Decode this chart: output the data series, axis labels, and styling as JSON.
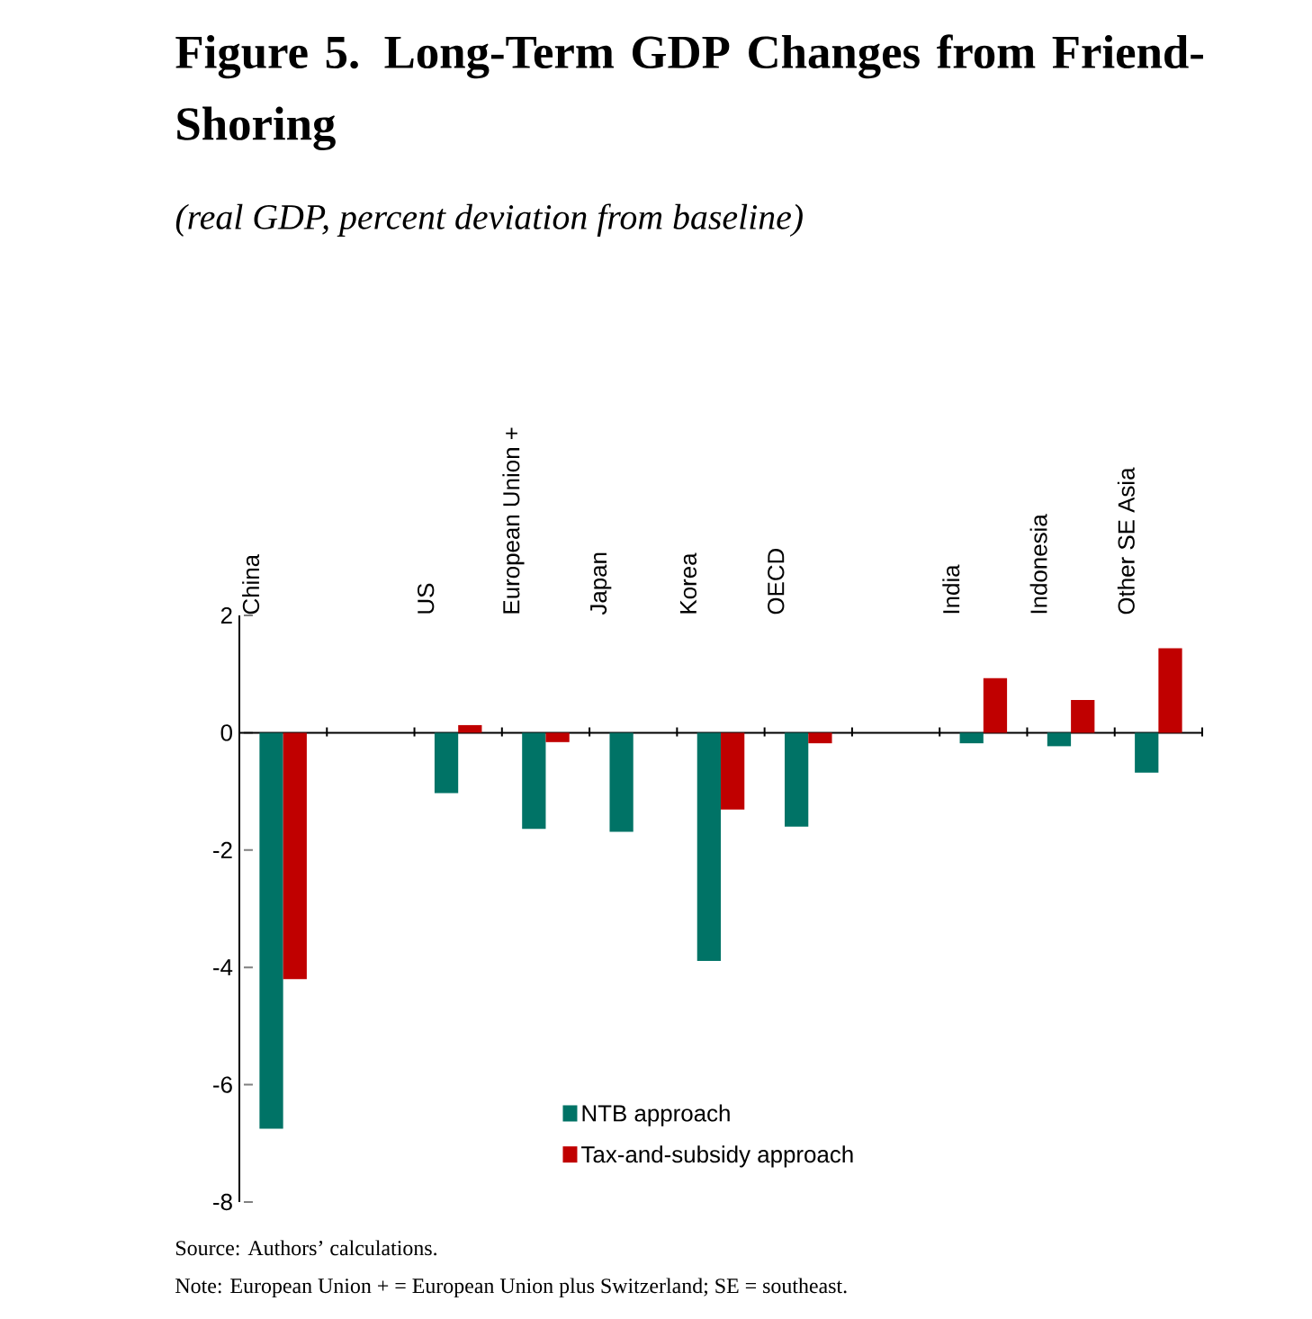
{
  "chart_data": {
    "type": "bar",
    "title": "Figure 5.  Long-Term GDP Changes from Friend-Shoring",
    "subtitle": "(real GDP, percent deviation from baseline)",
    "categories": [
      "China",
      null,
      "US",
      "European Union +",
      "Japan",
      "Korea",
      "OECD",
      null,
      "India",
      "Indonesia",
      "Other SE Asia"
    ],
    "series": [
      {
        "name": "NTB approach",
        "color": "#007366",
        "values": [
          -6.75,
          null,
          -1.03,
          -1.64,
          -1.69,
          -3.89,
          -1.6,
          null,
          -0.18,
          -0.23,
          -0.68
        ]
      },
      {
        "name": "Tax-and-subsidy approach",
        "color": "#c00000",
        "values": [
          -4.2,
          null,
          0.13,
          -0.16,
          0,
          -1.31,
          -0.18,
          null,
          0.93,
          0.56,
          1.44
        ]
      }
    ],
    "ylim": [
      -8,
      2
    ],
    "yticks": [
      -8,
      -6,
      -4,
      -2,
      0,
      2
    ],
    "legend": "bottom",
    "annotations": [
      "Source: Authors’ calculations.",
      "Note: European Union + = European Union plus Switzerland; SE = southeast."
    ]
  }
}
